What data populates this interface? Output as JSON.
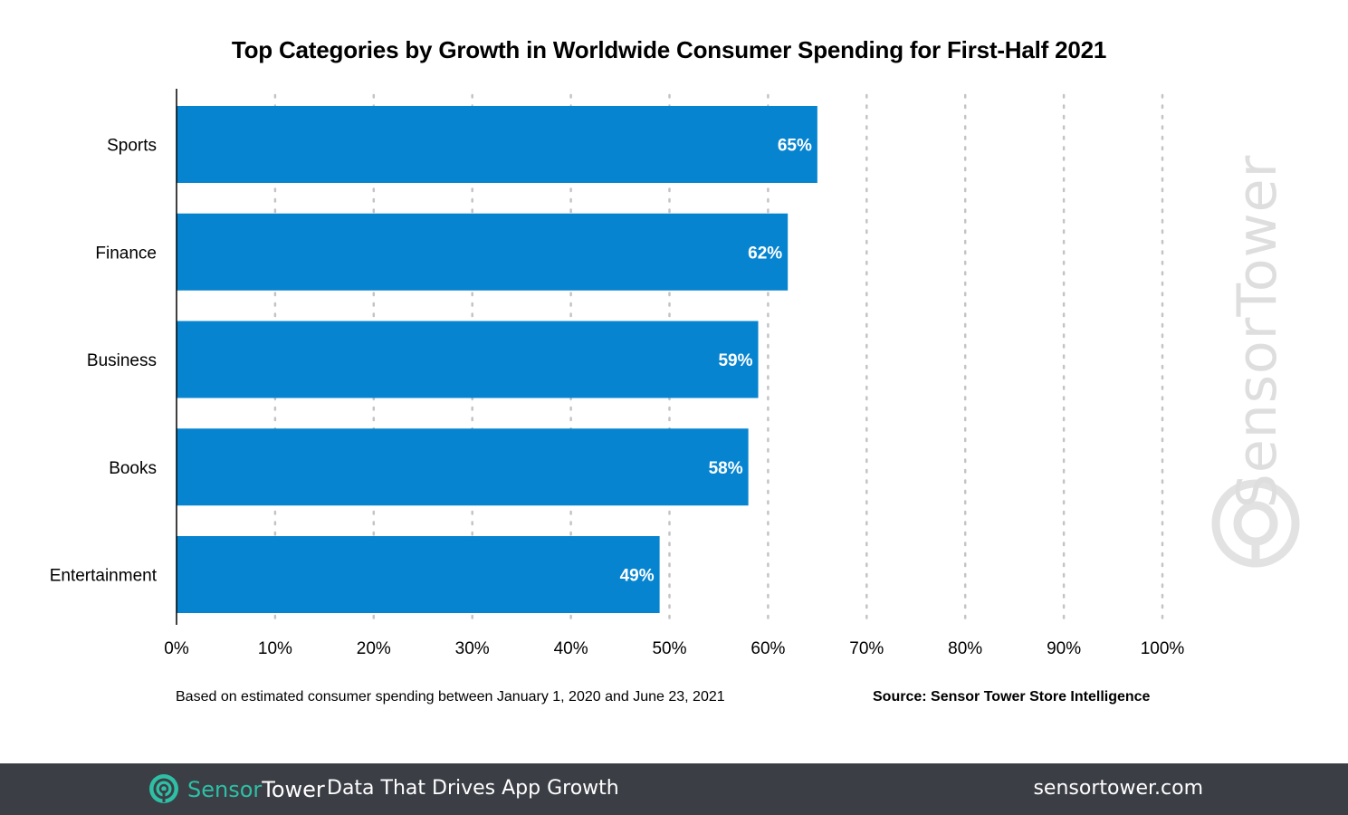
{
  "chart_data": {
    "type": "bar",
    "orientation": "horizontal",
    "title": "Top Categories by Growth in Worldwide Consumer Spending for First-Half 2021",
    "categories": [
      "Sports",
      "Finance",
      "Business",
      "Books",
      "Entertainment"
    ],
    "values": [
      65,
      62,
      59,
      58,
      49
    ],
    "value_labels": [
      "65%",
      "62%",
      "59%",
      "58%",
      "49%"
    ],
    "xlim": [
      0,
      100
    ],
    "xticks": [
      0,
      10,
      20,
      30,
      40,
      50,
      60,
      70,
      80,
      90,
      100
    ],
    "xtick_labels": [
      "0%",
      "10%",
      "20%",
      "30%",
      "40%",
      "50%",
      "60%",
      "70%",
      "80%",
      "90%",
      "100%"
    ],
    "xlabel": "",
    "ylabel": "",
    "grid": "vertical dotted",
    "bar_color": "#0684d0"
  },
  "notes": {
    "basis": "Based on estimated consumer spending between January 1, 2020 and June 23, 2021",
    "source": "Source: Sensor Tower Store Intelligence"
  },
  "watermark": {
    "text": "SensorTower",
    "icon": "sensortower-logo-icon"
  },
  "footer": {
    "brand_part1": "Sensor",
    "brand_part2": "Tower",
    "tagline": "Data That Drives App Growth",
    "website": "sensortower.com",
    "icon": "sensortower-logo-icon",
    "background": "#3b3e45",
    "accent": "#2ebfa5"
  }
}
